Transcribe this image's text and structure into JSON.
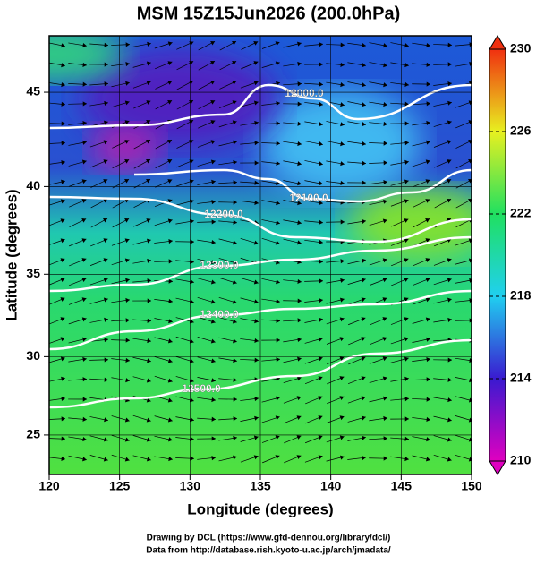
{
  "title": "MSM 15Z15Jun2026 (200.0hPa)",
  "x_axis": {
    "label": "Longitude (degrees)",
    "lim": [
      120,
      150
    ],
    "ticks": [
      120,
      125,
      130,
      135,
      140,
      145,
      150
    ]
  },
  "y_axis": {
    "label": "Latitude  (degrees)",
    "lim": [
      22.4,
      47.8
    ],
    "ticks": [
      25,
      30,
      35,
      40,
      45
    ]
  },
  "colorbar": {
    "lim": [
      210,
      230
    ],
    "ticks": [
      210,
      214,
      218,
      222,
      226,
      230
    ]
  },
  "contours": [
    {
      "value": 12000,
      "label": "12000.0"
    },
    {
      "value": 12100,
      "label": "12100.0"
    },
    {
      "value": 12200,
      "label": "12200.0"
    },
    {
      "value": 12300,
      "label": "12300.0"
    },
    {
      "value": 12400,
      "label": "12400.0"
    },
    {
      "value": 12500,
      "label": "12500.0"
    }
  ],
  "credits": [
    "Drawing by DCL (https://www.gfd-dennou.org/library/dcl/)",
    "Data from http://database.rish.kyoto-u.ac.jp/arch/jmadata/"
  ]
}
